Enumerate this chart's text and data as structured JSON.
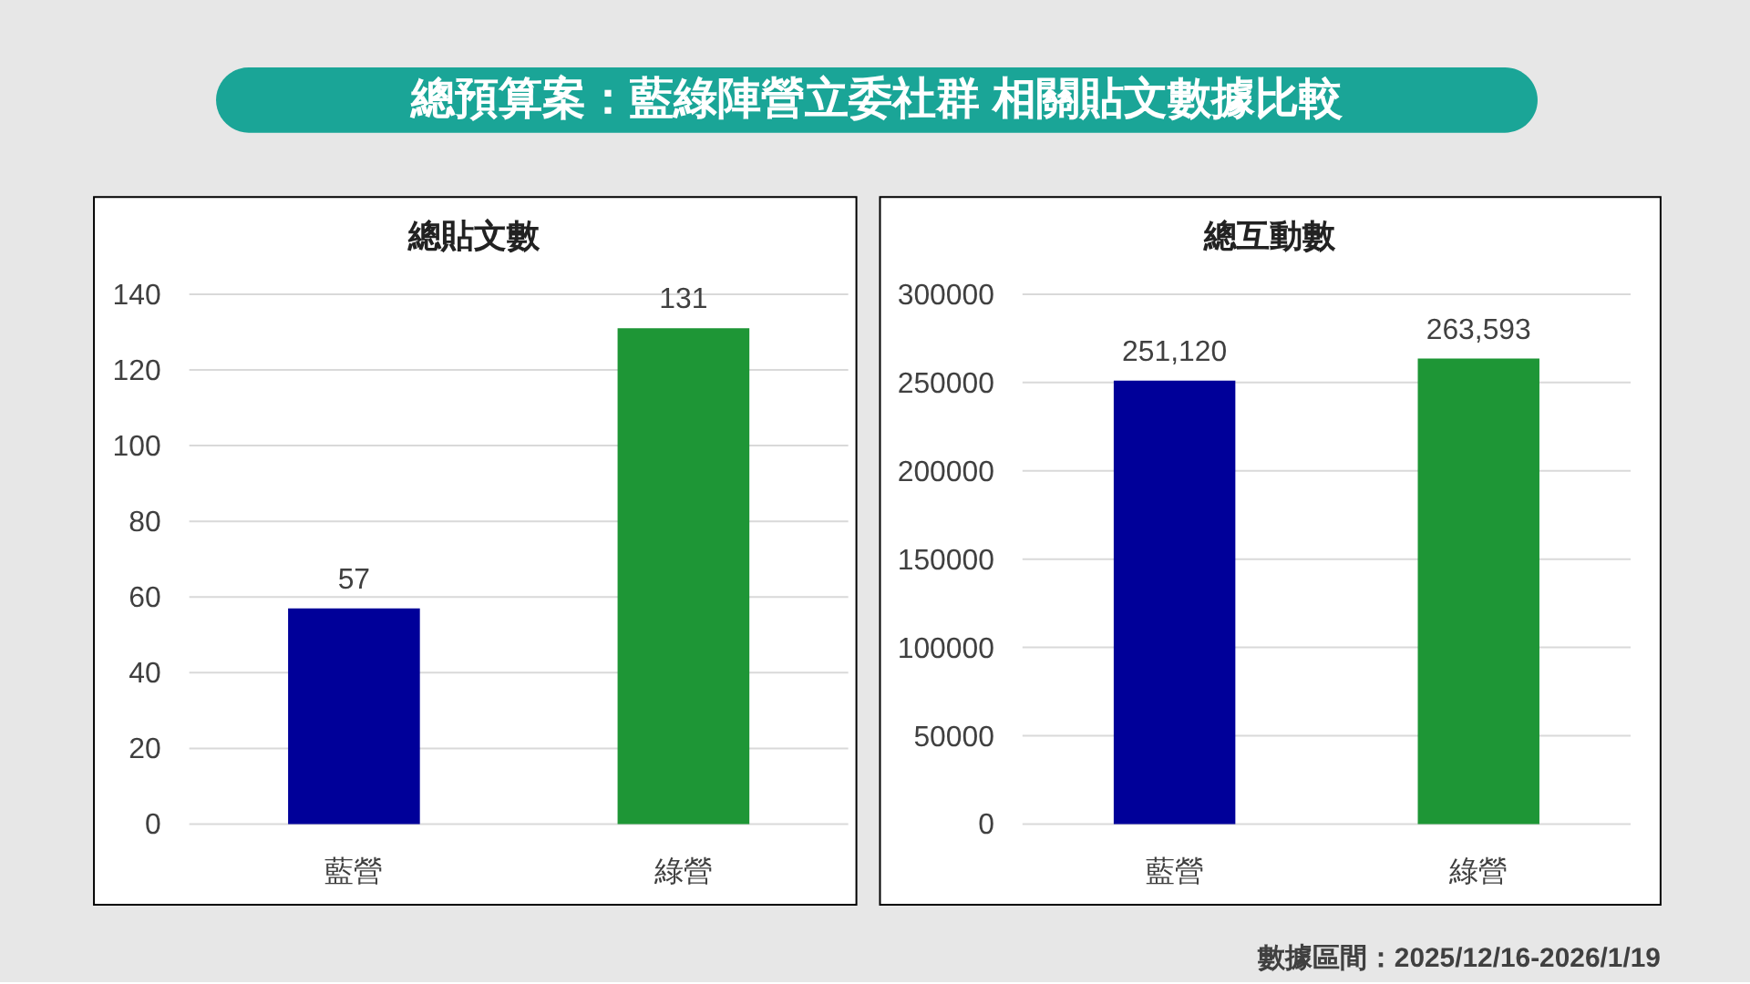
{
  "chart_data": [
    {
      "type": "other",
      "title": "總預算案：藍綠陣營立委社群 相關貼文數據比較",
      "annotations": [
        "數據區間：2025/12/16-2026/1/19"
      ]
    },
    {
      "type": "bar",
      "title": "總貼文數",
      "categories": [
        "藍營",
        "綠營"
      ],
      "values": [
        57,
        131
      ],
      "colors": [
        "#000099",
        "#1e9636"
      ],
      "ylim": [
        0,
        140
      ],
      "yticks": [
        0,
        20,
        40,
        60,
        80,
        100,
        120,
        140
      ],
      "grid": "y",
      "data_labels": true
    },
    {
      "type": "bar",
      "title": "總互動數",
      "categories": [
        "藍營",
        "綠營"
      ],
      "values": [
        251120,
        263593
      ],
      "colors": [
        "#000099",
        "#1e9636"
      ],
      "ylim": [
        0,
        300000
      ],
      "yticks": [
        0,
        50000,
        100000,
        150000,
        200000,
        250000,
        300000
      ],
      "grid": "y",
      "value_labels": [
        "251,120",
        "263,593"
      ]
    }
  ]
}
